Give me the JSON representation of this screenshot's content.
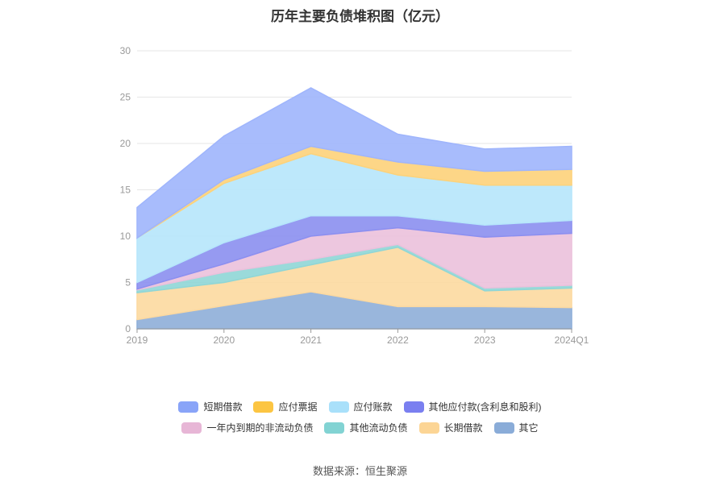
{
  "chart_data": {
    "type": "area",
    "stacked": true,
    "title": "历年主要负债堆积图（亿元）",
    "categories": [
      "2019",
      "2020",
      "2021",
      "2022",
      "2023",
      "2024Q1"
    ],
    "ylim": [
      0,
      30
    ],
    "yticks": [
      "0",
      "5",
      "10",
      "15",
      "20",
      "25",
      "30"
    ],
    "grid": true,
    "legend_position": "bottom",
    "series": [
      {
        "name": "其它",
        "color": "#8eaed8",
        "values": [
          1.0,
          2.5,
          4.0,
          2.4,
          2.4,
          2.3
        ]
      },
      {
        "name": "长期借款",
        "color": "#fcd9a0",
        "values": [
          2.9,
          2.5,
          2.9,
          6.4,
          1.7,
          2.1
        ]
      },
      {
        "name": "其他流动负债",
        "color": "#8fd6d6",
        "values": [
          0.3,
          1.1,
          0.6,
          0.3,
          0.3,
          0.3
        ]
      },
      {
        "name": "一年内到期的非流动负债",
        "color": "#ebc1dc",
        "values": [
          0.1,
          0.9,
          2.5,
          1.8,
          5.5,
          5.6
        ]
      },
      {
        "name": "其他应付款(含利息和股利)",
        "color": "#8b8ff0",
        "values": [
          0.7,
          2.3,
          2.2,
          1.3,
          1.3,
          1.4
        ]
      },
      {
        "name": "应付账款",
        "color": "#b6e6fb",
        "values": [
          4.8,
          6.4,
          6.7,
          4.4,
          4.3,
          3.8
        ]
      },
      {
        "name": "应付票据",
        "color": "#fdd27a",
        "values": [
          0.0,
          0.4,
          0.8,
          1.4,
          1.5,
          1.7
        ]
      },
      {
        "name": "短期借款",
        "color": "#9fb5fc",
        "values": [
          3.3,
          4.7,
          6.3,
          3.0,
          2.4,
          2.5
        ]
      }
    ]
  },
  "legend": {
    "row1": [
      {
        "label": "短期借款",
        "color": "#89a4f8"
      },
      {
        "label": "应付票据",
        "color": "#fcc542"
      },
      {
        "label": "应付账款",
        "color": "#a9e0fa"
      },
      {
        "label": "其他应付款(含利息和股利)",
        "color": "#7a7ff0"
      }
    ],
    "row2": [
      {
        "label": "一年内到期的非流动负债",
        "color": "#e7b6d6"
      },
      {
        "label": "其他流动负债",
        "color": "#82d3d3"
      },
      {
        "label": "长期借款",
        "color": "#fcd595"
      },
      {
        "label": "其它",
        "color": "#8aacd8"
      }
    ]
  },
  "source": "数据来源：恒生聚源"
}
